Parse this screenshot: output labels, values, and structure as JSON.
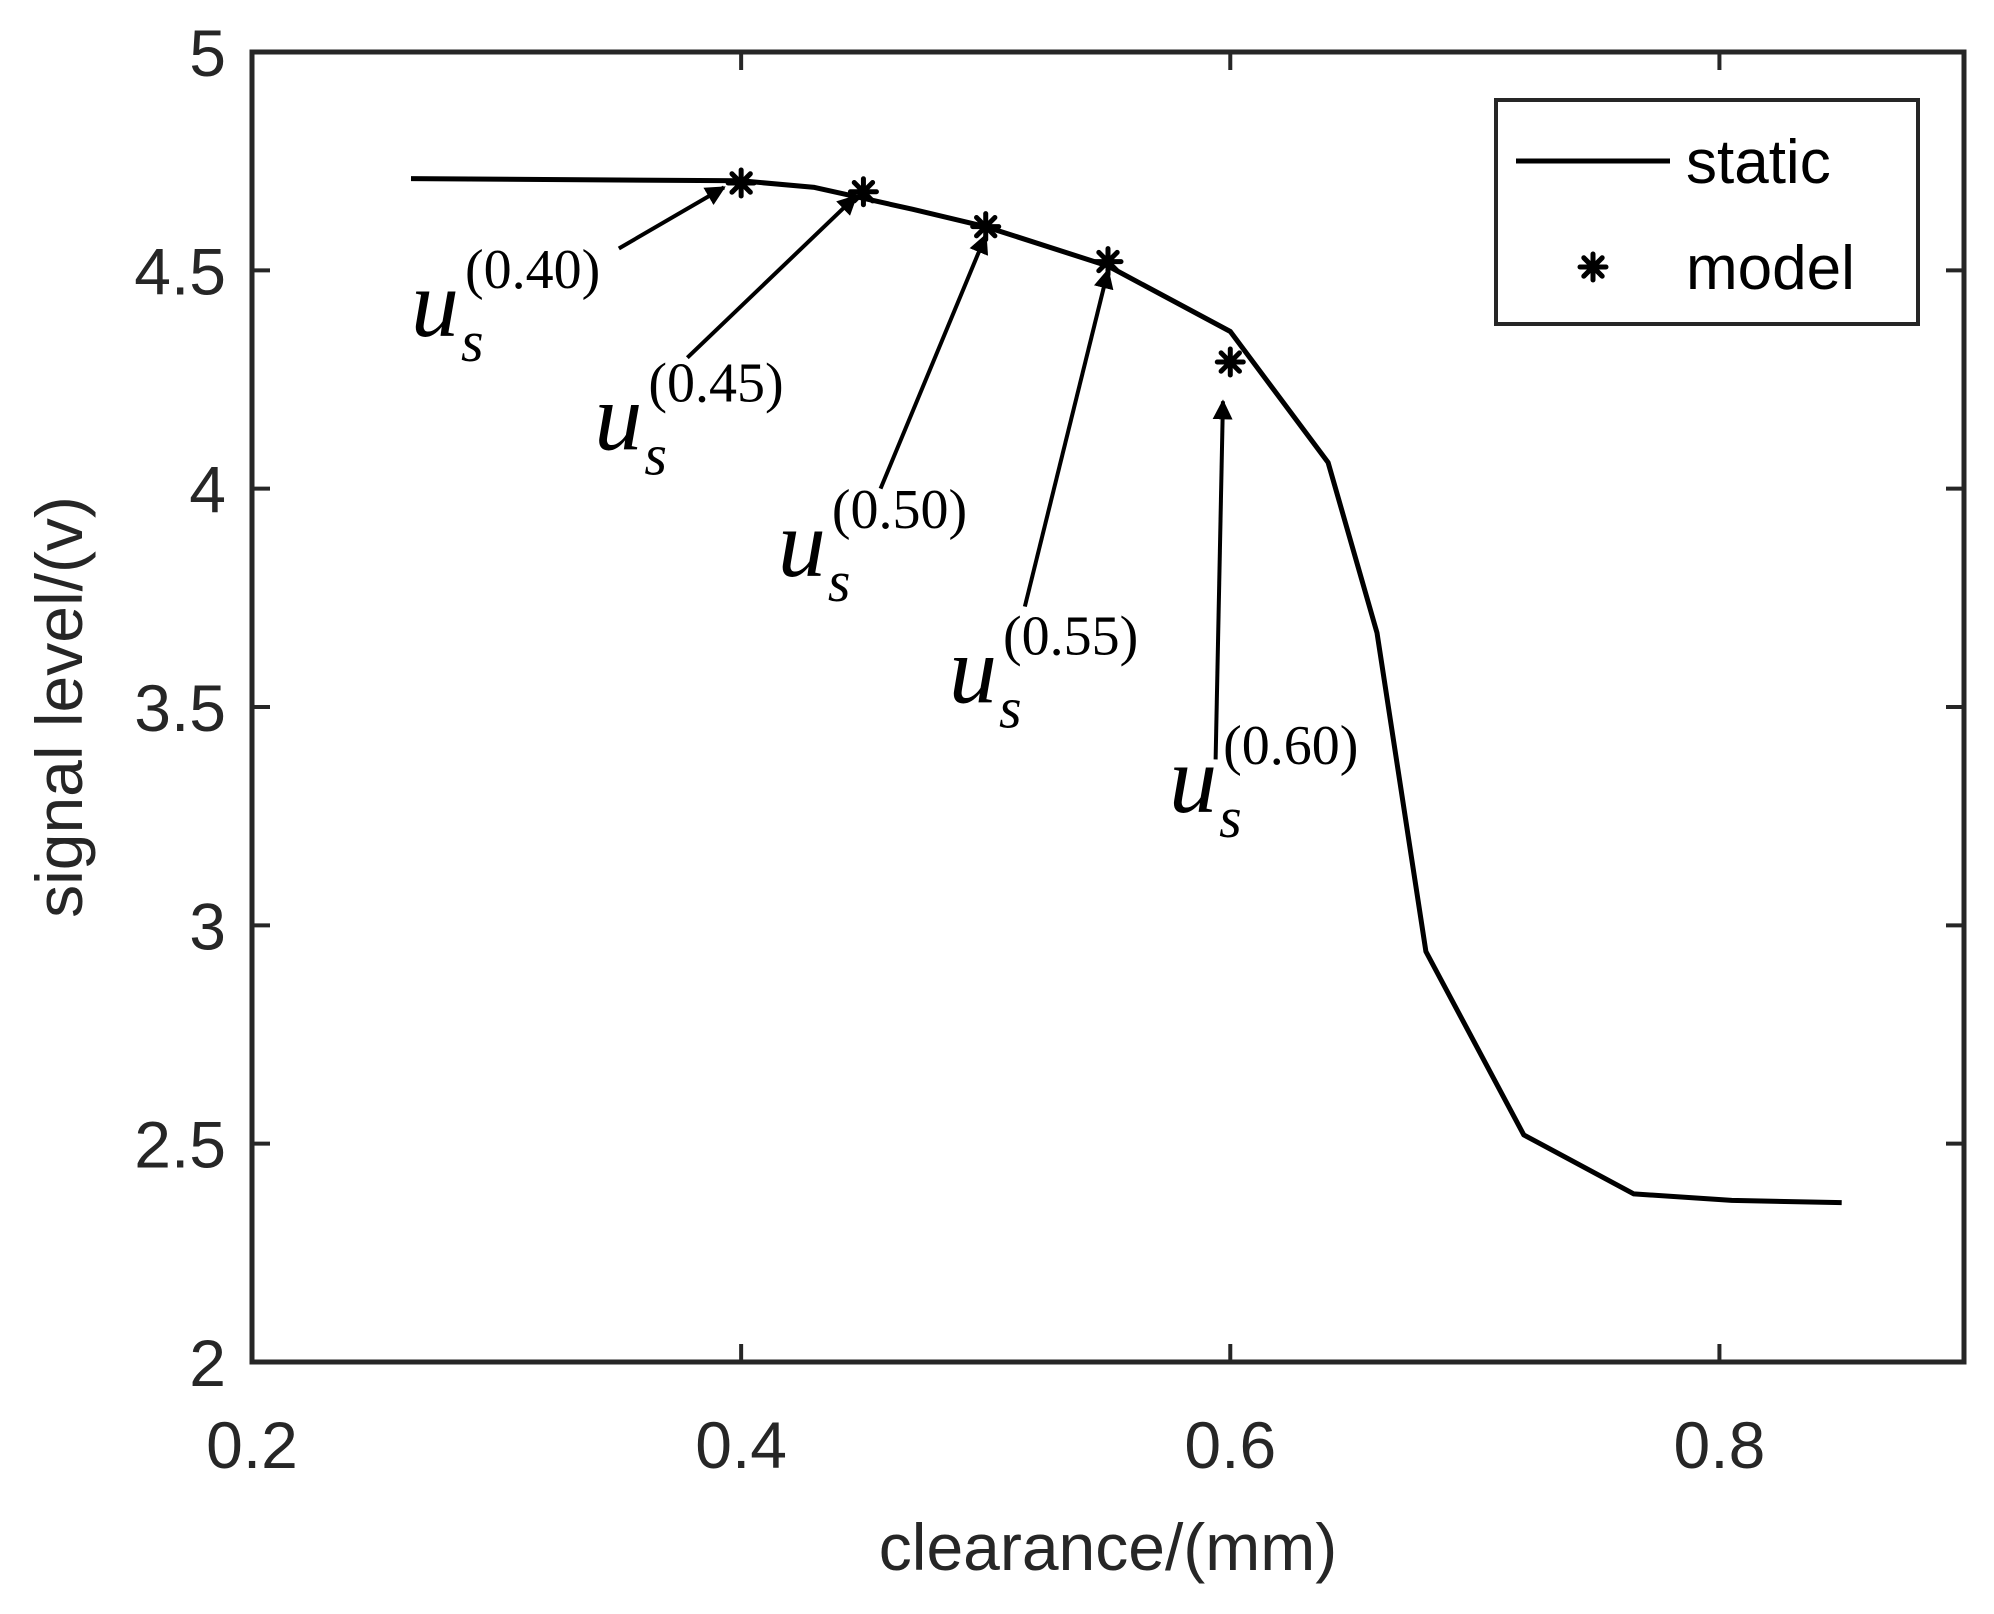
{
  "chart_data": {
    "type": "line",
    "title": "",
    "xlabel": "clearance/(mm)",
    "ylabel": "signal level/(v)",
    "xlim": [
      0.2,
      0.9
    ],
    "ylim": [
      2,
      5
    ],
    "xticks": [
      0.2,
      0.4,
      0.6,
      0.8
    ],
    "xtick_labels": [
      "0.2",
      "0.4",
      "0.6",
      "0.8"
    ],
    "yticks": [
      2,
      2.5,
      3,
      3.5,
      4,
      4.5,
      5
    ],
    "ytick_labels": [
      "2",
      "2.5",
      "3",
      "3.5",
      "4",
      "4.5",
      "5"
    ],
    "grid": false,
    "legend_position": "top-right",
    "series": [
      {
        "name": "static",
        "style": "line",
        "color": "#000000",
        "x": [
          0.265,
          0.4,
          0.43,
          0.47,
          0.5,
          0.55,
          0.6,
          0.64,
          0.66,
          0.68,
          0.72,
          0.765,
          0.805,
          0.85
        ],
        "y": [
          4.71,
          4.705,
          4.69,
          4.64,
          4.6,
          4.51,
          4.36,
          4.06,
          3.67,
          2.94,
          2.52,
          2.385,
          2.37,
          2.365
        ]
      },
      {
        "name": "model",
        "style": "marker",
        "marker": "asterisk",
        "color": "#000000",
        "x": [
          0.4,
          0.45,
          0.5,
          0.55,
          0.6
        ],
        "y": [
          4.7,
          4.68,
          4.6,
          4.52,
          4.29
        ]
      }
    ],
    "annotations": [
      {
        "var": "u",
        "sub": "s",
        "sup": "(0.40)",
        "label_x": 0.265,
        "label_y": 4.35,
        "arrow_from": [
          0.35,
          4.55
        ],
        "arrow_to": [
          0.393,
          4.69
        ]
      },
      {
        "var": "u",
        "sub": "s",
        "sup": "(0.45)",
        "label_x": 0.34,
        "label_y": 4.09,
        "arrow_from": [
          0.378,
          4.3
        ],
        "arrow_to": [
          0.447,
          4.67
        ]
      },
      {
        "var": "u",
        "sub": "s",
        "sup": "(0.50)",
        "label_x": 0.415,
        "label_y": 3.8,
        "arrow_from": [
          0.457,
          4.0
        ],
        "arrow_to": [
          0.5,
          4.58
        ]
      },
      {
        "var": "u",
        "sub": "s",
        "sup": "(0.55)",
        "label_x": 0.485,
        "label_y": 3.51,
        "arrow_from": [
          0.516,
          3.73
        ],
        "arrow_to": [
          0.55,
          4.5
        ]
      },
      {
        "var": "u",
        "sub": "s",
        "sup": "(0.60)",
        "label_x": 0.575,
        "label_y": 3.26,
        "arrow_from": [
          0.594,
          3.38
        ],
        "arrow_to": [
          0.597,
          4.2
        ]
      }
    ]
  }
}
